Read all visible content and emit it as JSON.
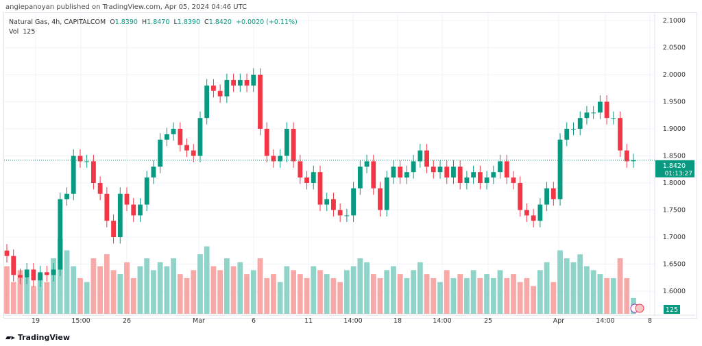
{
  "publish_line": "angiepanoyan published on TradingView.com, Apr 05, 2024 04:46 UTC",
  "legend": {
    "symbol": "Natural Gas, 4h, CAPITALCOM",
    "o_label": "O",
    "o": "1.8390",
    "h_label": "H",
    "h": "1.8470",
    "l_label": "L",
    "l": "1.8390",
    "c_label": "C",
    "c": "1.8420",
    "change": "+0.0020 (+0.11%)",
    "vol_label": "Vol",
    "vol": "125"
  },
  "footer_logo": "TradingView",
  "colors": {
    "up": "#089981",
    "down": "#f23645",
    "up_vol": "#8fd3c9",
    "down_vol": "#f7a9a7"
  },
  "chart_data": {
    "type": "candlestick",
    "title": "Natural Gas, 4h, CAPITALCOM",
    "ylim": [
      1.56,
      2.11
    ],
    "y_ticks": [
      "2.1000",
      "2.0500",
      "2.0000",
      "1.9500",
      "1.9000",
      "1.8500",
      "1.8000",
      "1.7500",
      "1.7000",
      "1.6500",
      "1.6000"
    ],
    "x_ticks": [
      "19",
      "15:00",
      "26",
      "Mar",
      "6",
      "11",
      "14:00",
      "18",
      "14:00",
      "25",
      "Apr",
      "14:00",
      "8"
    ],
    "current_price": "1.8420",
    "countdown": "01:13:27",
    "current_volume": "125",
    "closes": [
      1.665,
      1.63,
      1.625,
      1.64,
      1.62,
      1.635,
      1.63,
      1.64,
      1.77,
      1.78,
      1.85,
      1.84,
      1.84,
      1.8,
      1.78,
      1.73,
      1.7,
      1.78,
      1.76,
      1.74,
      1.76,
      1.81,
      1.83,
      1.88,
      1.89,
      1.9,
      1.87,
      1.86,
      1.85,
      1.92,
      1.98,
      1.97,
      1.96,
      1.99,
      1.98,
      1.99,
      1.98,
      2.0,
      1.9,
      1.85,
      1.84,
      1.85,
      1.9,
      1.84,
      1.81,
      1.8,
      1.82,
      1.76,
      1.77,
      1.75,
      1.74,
      1.74,
      1.79,
      1.83,
      1.84,
      1.79,
      1.75,
      1.81,
      1.83,
      1.81,
      1.82,
      1.84,
      1.86,
      1.83,
      1.82,
      1.83,
      1.81,
      1.83,
      1.8,
      1.81,
      1.82,
      1.8,
      1.81,
      1.82,
      1.84,
      1.81,
      1.8,
      1.75,
      1.74,
      1.73,
      1.76,
      1.79,
      1.77,
      1.88,
      1.9,
      1.9,
      1.92,
      1.93,
      1.93,
      1.95,
      1.92,
      1.92,
      1.86,
      1.84,
      1.842
    ],
    "volumes": [
      60,
      40,
      55,
      45,
      35,
      50,
      40,
      70,
      95,
      80,
      60,
      45,
      40,
      70,
      60,
      75,
      55,
      50,
      65,
      45,
      60,
      70,
      55,
      65,
      60,
      70,
      50,
      45,
      55,
      75,
      85,
      60,
      55,
      70,
      60,
      65,
      50,
      55,
      70,
      45,
      50,
      40,
      60,
      55,
      50,
      45,
      60,
      55,
      50,
      45,
      40,
      55,
      60,
      70,
      65,
      50,
      45,
      55,
      60,
      50,
      45,
      55,
      65,
      50,
      45,
      40,
      55,
      45,
      50,
      45,
      55,
      45,
      50,
      45,
      55,
      45,
      50,
      40,
      45,
      35,
      55,
      65,
      40,
      80,
      70,
      65,
      75,
      60,
      55,
      50,
      45,
      45,
      70,
      45,
      20
    ]
  }
}
